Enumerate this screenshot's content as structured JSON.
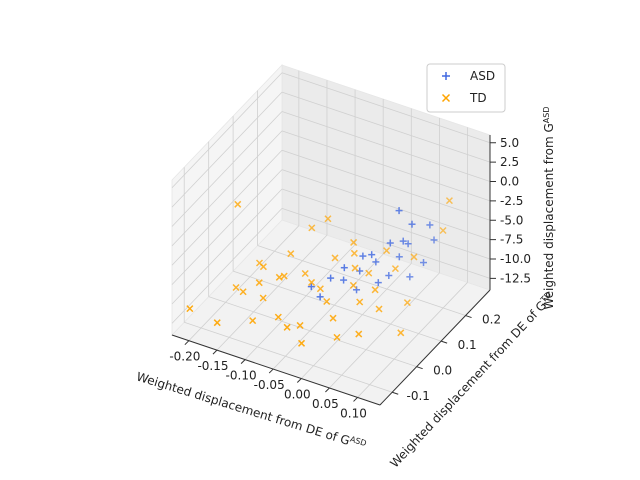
{
  "chart_data": {
    "type": "scatter",
    "projection": "3d",
    "xlabel": "Weighted displacement from DE of G",
    "xlabel_superscript": "ASD",
    "ylabel": "Weighted displacement from DE of G",
    "ylabel_superscript": "TD",
    "zlabel": "Weighted displacement from G",
    "zlabel_superscript": "ASD",
    "xlim": [
      -0.23,
      0.14
    ],
    "ylim": [
      -0.15,
      0.3
    ],
    "zlim": [
      -14.0,
      6.0
    ],
    "xticks": [
      "-0.20",
      "-0.15",
      "-0.10",
      "-0.05",
      "0.00",
      "0.05",
      "0.10"
    ],
    "yticks": [
      "-0.1",
      "0.0",
      "0.1",
      "0.2"
    ],
    "zticks": [
      "-12.5",
      "-10.0",
      "-7.5",
      "-5.0",
      "-2.5",
      "0.0",
      "2.5",
      "5.0"
    ],
    "grid": true,
    "legend_position": "top-right",
    "series": [
      {
        "name": "ASD",
        "marker": "+",
        "color": "#4169e1",
        "points": [
          [
            0.1,
            0.02,
            4.5
          ],
          [
            0.11,
            0.05,
            2.0
          ],
          [
            0.12,
            0.1,
            0.5
          ],
          [
            0.08,
            0.03,
            -0.5
          ],
          [
            0.06,
            0.0,
            -1.5
          ],
          [
            0.09,
            0.08,
            -2.0
          ],
          [
            0.04,
            0.01,
            -2.5
          ],
          [
            0.02,
            -0.02,
            -3.5
          ],
          [
            0.05,
            0.04,
            -4.0
          ],
          [
            0.07,
            0.09,
            -4.5
          ],
          [
            0.0,
            -0.03,
            -5.0
          ],
          [
            0.03,
            0.02,
            -5.0
          ],
          [
            0.1,
            0.12,
            -5.5
          ],
          [
            0.01,
            0.0,
            -6.0
          ],
          [
            0.06,
            0.07,
            -6.5
          ],
          [
            -0.01,
            -0.05,
            -7.0
          ],
          [
            0.05,
            0.05,
            -7.0
          ],
          [
            0.08,
            0.11,
            -7.5
          ],
          [
            -0.03,
            -0.04,
            -6.5
          ],
          [
            0.11,
            0.14,
            -3.0
          ],
          [
            0.09,
            0.06,
            -1.0
          ],
          [
            0.02,
            0.03,
            -8.0
          ]
        ]
      },
      {
        "name": "TD",
        "marker": "x",
        "color": "#ffa500",
        "points": [
          [
            -0.2,
            0.05,
            -3.0
          ],
          [
            -0.22,
            -0.1,
            -12.0
          ],
          [
            -0.18,
            -0.08,
            -13.5
          ],
          [
            -0.19,
            0.02,
            -12.5
          ],
          [
            -0.16,
            -0.02,
            -11.0
          ],
          [
            -0.15,
            0.04,
            -9.5
          ],
          [
            -0.12,
            -0.03,
            -10.5
          ],
          [
            -0.1,
            0.01,
            -8.5
          ],
          [
            -0.08,
            -0.06,
            -11.0
          ],
          [
            -0.11,
            0.06,
            -7.5
          ],
          [
            -0.05,
            -0.04,
            -12.0
          ],
          [
            -0.06,
            0.03,
            -9.0
          ],
          [
            -0.03,
            -0.08,
            -12.5
          ],
          [
            -0.09,
            0.1,
            -5.0
          ],
          [
            -0.02,
            0.0,
            -9.5
          ],
          [
            0.0,
            -0.02,
            -10.5
          ],
          [
            -0.04,
            0.08,
            -7.0
          ],
          [
            0.01,
            0.04,
            -8.0
          ],
          [
            -0.07,
            0.12,
            -4.0
          ],
          [
            0.02,
            -0.05,
            -11.5
          ],
          [
            0.03,
            0.02,
            -9.0
          ],
          [
            -0.01,
            0.09,
            -6.0
          ],
          [
            0.04,
            0.06,
            -8.5
          ],
          [
            0.05,
            -0.03,
            -11.0
          ],
          [
            0.06,
            0.03,
            -9.5
          ],
          [
            -0.13,
            -0.05,
            -13.0
          ],
          [
            0.07,
            0.15,
            -6.5
          ],
          [
            -0.14,
            0.0,
            -10.0
          ],
          [
            0.08,
            0.1,
            -10.5
          ],
          [
            0.09,
            0.05,
            -12.5
          ],
          [
            0.12,
            0.18,
            1.0
          ],
          [
            -0.06,
            -0.07,
            -11.5
          ],
          [
            0.0,
            0.07,
            -7.0
          ],
          [
            -0.02,
            0.11,
            -5.5
          ],
          [
            0.03,
            0.13,
            -6.0
          ],
          [
            -0.1,
            -0.01,
            -8.0
          ],
          [
            0.05,
            0.12,
            -7.5
          ],
          [
            -0.17,
            0.07,
            -10.5
          ],
          [
            0.1,
            0.2,
            -4.0
          ],
          [
            -0.04,
            0.02,
            -9.0
          ],
          [
            0.02,
            0.08,
            -7.5
          ],
          [
            -0.08,
            0.05,
            -9.0
          ]
        ]
      }
    ]
  }
}
